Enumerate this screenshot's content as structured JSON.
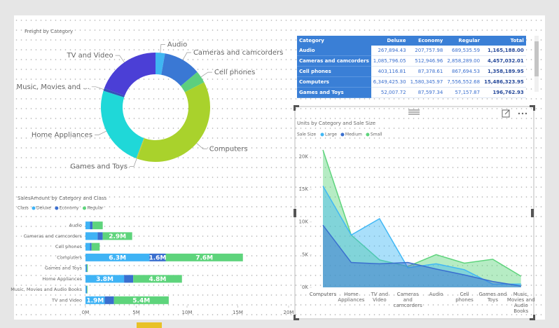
{
  "chart_data": [
    {
      "type": "donut",
      "title": "Freight by Category",
      "categories": [
        "Audio",
        "Cameras and camcorders",
        "Cell phones",
        "Computers",
        "Games and Toys",
        "Home Appliances",
        "Music, Movies and ...",
        "TV and Video"
      ],
      "values": [
        2.8,
        11.1,
        3.6,
        38.1,
        0.3,
        24.2,
        0.8,
        19.4
      ],
      "colors": [
        "#3fb6f2",
        "#3a78d4",
        "#5ccf7e",
        "#a9d22c",
        "#c9c93a",
        "#1fd8d8",
        "#3452b8",
        "#4b3fd6"
      ]
    },
    {
      "type": "hbar_stacked",
      "title": "SalesAmount by Category and Class",
      "legend_title": "Class",
      "categories": [
        "Audio",
        "Cameras and camcorders",
        "Cell phones",
        "Computers",
        "Games and Toys",
        "Home Appliances",
        "Music, Movies and Audio Books",
        "TV and Video"
      ],
      "series": [
        {
          "name": "Deluxe",
          "color": "#3fb3f5",
          "values": [
            450000,
            1200000,
            450000,
            6300000,
            80000,
            3800000,
            100000,
            1900000
          ],
          "value_labels": [
            null,
            null,
            null,
            "6.3M",
            null,
            "3.8M",
            null,
            "1.9M"
          ]
        },
        {
          "name": "Economy",
          "color": "#3a6fcf",
          "values": [
            250000,
            500000,
            150000,
            1600000,
            60000,
            900000,
            40000,
            900000
          ],
          "value_labels": [
            null,
            null,
            null,
            "1.6M",
            null,
            null,
            null,
            null
          ]
        },
        {
          "name": "Regular",
          "color": "#5ed47c",
          "values": [
            1000000,
            2900000,
            800000,
            7600000,
            90000,
            4800000,
            60000,
            5400000
          ],
          "value_labels": [
            null,
            "2.9M",
            null,
            "7.6M",
            null,
            "4.8M",
            null,
            "5.4M"
          ]
        }
      ],
      "xlim": [
        0,
        20000000
      ],
      "xticks": [
        {
          "value": 0,
          "label": "0M"
        },
        {
          "value": 5000000,
          "label": "5M"
        },
        {
          "value": 10000000,
          "label": "10M"
        },
        {
          "value": 15000000,
          "label": "15M"
        },
        {
          "value": 20000000,
          "label": "20M"
        }
      ]
    },
    {
      "type": "area",
      "title": "Units by Category and Sale Size",
      "legend_title": "Sale Size",
      "categories": [
        "Computers",
        "Home Appliances",
        "TV and Video",
        "Cameras and camcorders",
        "Audio",
        "Cell phones",
        "Games and Toys",
        "Music, Movies and Audio Books"
      ],
      "series": [
        {
          "name": "Large",
          "color": "#41b8f5",
          "values": [
            15500,
            8000,
            10500,
            3000,
            3600,
            2700,
            500,
            500
          ]
        },
        {
          "name": "Medium",
          "color": "#3a6fcf",
          "values": [
            9500,
            3800,
            3600,
            3800,
            2800,
            1900,
            900,
            200
          ]
        },
        {
          "name": "Small",
          "color": "#5ed47c",
          "values": [
            21000,
            8000,
            4200,
            3200,
            5000,
            3700,
            4300,
            1700
          ]
        }
      ],
      "ylim": [
        0,
        21000
      ],
      "yticks": [
        {
          "value": 0,
          "label": "0K"
        },
        {
          "value": 5000,
          "label": "5K"
        },
        {
          "value": 10000,
          "label": "10K"
        },
        {
          "value": 15000,
          "label": "15K"
        },
        {
          "value": 20000,
          "label": "20K"
        }
      ]
    }
  ],
  "table": {
    "columns": [
      "Category",
      "Deluxe",
      "Economy",
      "Regular",
      "Total"
    ],
    "rows": [
      [
        "Audio",
        "267,894.43",
        "207,757.98",
        "689,535.59",
        "1,165,188.00"
      ],
      [
        "Cameras and camcorders",
        "1,085,796.05",
        "512,946.96",
        "2,858,289.00",
        "4,457,032.01"
      ],
      [
        "Cell phones",
        "403,116.81",
        "87,378.61",
        "867,694.53",
        "1,358,189.95"
      ],
      [
        "Computers",
        "6,349,425.30",
        "1,580,345.97",
        "7,556,552.68",
        "15,486,323.95"
      ],
      [
        "Games and Toys",
        "52,007.72",
        "87,597.34",
        "57,157.87",
        "196,762.93"
      ]
    ]
  }
}
